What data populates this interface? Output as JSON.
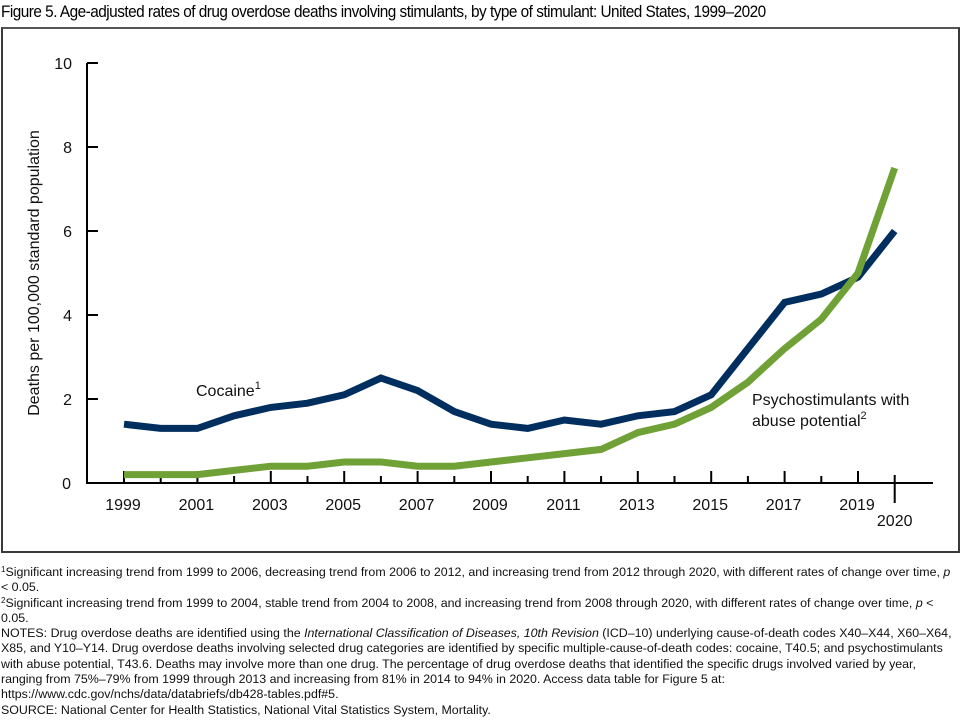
{
  "figure": {
    "title": "Figure 5. Age-adjusted rates of drug overdose deaths involving stimulants, by type of stimulant: United States, 1999–2020"
  },
  "chart_data": {
    "type": "line",
    "title": "Figure 5. Age-adjusted rates of drug overdose deaths involving stimulants, by type of stimulant: United States, 1999–2020",
    "xlabel": "",
    "ylabel": "Deaths per 100,000 standard population",
    "ylim": [
      0,
      10
    ],
    "yticks": [
      0,
      2,
      4,
      6,
      8,
      10
    ],
    "xlim": [
      1999,
      2020
    ],
    "x": [
      1999,
      2000,
      2001,
      2002,
      2003,
      2004,
      2005,
      2006,
      2007,
      2008,
      2009,
      2010,
      2011,
      2012,
      2013,
      2014,
      2015,
      2016,
      2017,
      2018,
      2019,
      2020
    ],
    "xtick_labels": [
      "1999",
      "2001",
      "2003",
      "2005",
      "2007",
      "2009",
      "2011",
      "2013",
      "2015",
      "2017",
      "2019",
      "2020"
    ],
    "grid": false,
    "legend": "inline-labels",
    "series": [
      {
        "name": "Cocaine",
        "footnote": "1",
        "color": "#002F5F",
        "label_position": "upper-left",
        "values": [
          1.4,
          1.3,
          1.3,
          1.6,
          1.8,
          1.9,
          2.1,
          2.5,
          2.2,
          1.7,
          1.4,
          1.3,
          1.5,
          1.4,
          1.6,
          1.7,
          2.1,
          3.2,
          4.3,
          4.5,
          4.9,
          6.0
        ]
      },
      {
        "name": "Psychostimulants with abuse potential",
        "label_lines": [
          "Psychostimulants with",
          "abuse potential"
        ],
        "footnote": "2",
        "color": "#6FA136",
        "label_position": "lower-right",
        "values": [
          0.2,
          0.2,
          0.2,
          0.3,
          0.4,
          0.4,
          0.5,
          0.5,
          0.4,
          0.4,
          0.5,
          0.6,
          0.7,
          0.8,
          1.2,
          1.4,
          1.8,
          2.4,
          3.2,
          3.9,
          5.0,
          7.5
        ]
      }
    ]
  },
  "notes": {
    "footnote1_marker": "1",
    "footnote1": "Significant increasing trend from 1999 to 2006, decreasing trend from 2006 to 2012, and increasing trend from 2012 through 2020, with different rates of change over time, ",
    "footnote1_p": "p",
    "footnote1_end": " < 0.05.",
    "footnote2_marker": "2",
    "footnote2": "Significant increasing trend from 1999 to 2004, stable trend from 2004 to 2008, and increasing trend from 2008 through 2020, with different rates of change over time, ",
    "footnote2_p": "p",
    "footnote2_end": " < 0.05.",
    "notes_prefix": "NOTES: Drug overdose deaths are identified using the ",
    "notes_italic": "International Classification of Diseases, 10th Revision",
    "notes_rest": " (ICD–10) underlying cause-of-death codes X40–X44, X60–X64, X85, and Y10–Y14. Drug overdose deaths involving selected drug categories are identified by specific multiple-cause-of-death codes: cocaine, T40.5; and psychostimulants with abuse potential, T43.6. Deaths may involve more than one drug. The percentage of drug overdose deaths that identified the specific drugs involved varied by year, ranging from 75%–79% from 1999 through 2013 and increasing from 81% in 2014 to 94% in 2020. Access data table for Figure 5 at: https://www.cdc.gov/nchs/data/databriefs/db428-tables.pdf#5.",
    "source": "SOURCE: National Center for Health Statistics, National Vital Statistics System, Mortality."
  }
}
